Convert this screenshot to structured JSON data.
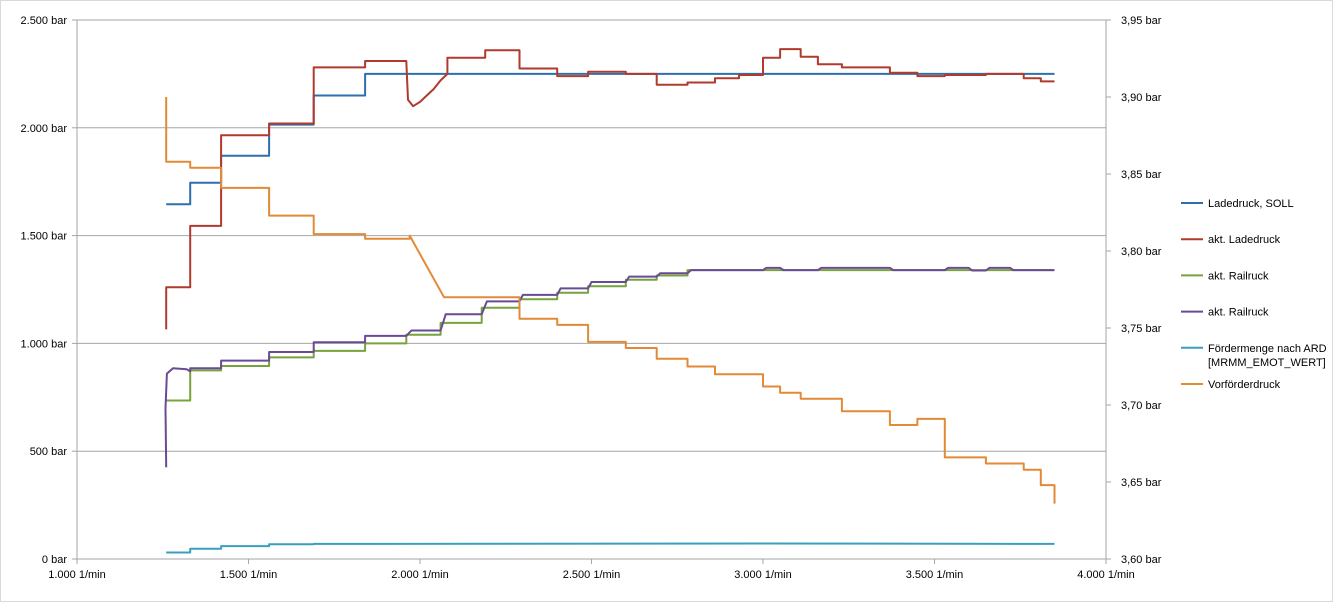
{
  "chart_data": {
    "type": "line",
    "title": "",
    "xlabel": "",
    "ylabel": "",
    "xlim": [
      1000,
      4000
    ],
    "ylim": [
      0,
      2500
    ],
    "y2lim": [
      3.6,
      3.95
    ],
    "x_ticks": [
      "1.000 1/min",
      "1.500 1/min",
      "2.000 1/min",
      "2.500 1/min",
      "3.000 1/min",
      "3.500 1/min",
      "4.000 1/min"
    ],
    "y_ticks": [
      "0 bar",
      "500 bar",
      "1.000 bar",
      "1.500 bar",
      "2.000 bar",
      "2.500 bar"
    ],
    "y2_ticks": [
      "3,60 bar",
      "3,65 bar",
      "3,70 bar",
      "3,75 bar",
      "3,80 bar",
      "3,85 bar",
      "3,90 bar",
      "3,95 bar"
    ],
    "grid": "horizontal",
    "legend_position": "right",
    "series": [
      {
        "name": "Ladedruck, SOLL",
        "color": "#2e6fad",
        "axis": "left",
        "x": [
          1260,
          1330,
          1330,
          1420,
          1420,
          1560,
          1560,
          1690,
          1690,
          1840,
          1840,
          3850
        ],
        "y": [
          1645,
          1645,
          1745,
          1745,
          1870,
          1870,
          2015,
          2015,
          2150,
          2150,
          2250,
          2250
        ]
      },
      {
        "name": "akt. Ladedruck",
        "color": "#b03a2e",
        "axis": "left",
        "x": [
          1260,
          1260,
          1330,
          1330,
          1420,
          1420,
          1560,
          1560,
          1690,
          1690,
          1840,
          1840,
          1960,
          1965,
          1980,
          2000,
          2040,
          2060,
          2080,
          2080,
          2190,
          2190,
          2290,
          2290,
          2400,
          2400,
          2490,
          2490,
          2600,
          2600,
          2690,
          2690,
          2780,
          2780,
          2860,
          2860,
          2930,
          2930,
          3000,
          3000,
          3050,
          3050,
          3110,
          3110,
          3160,
          3160,
          3230,
          3230,
          3370,
          3370,
          3450,
          3450,
          3530,
          3530,
          3650,
          3650,
          3760,
          3760,
          3810,
          3810,
          3850
        ],
        "y": [
          1065,
          1260,
          1260,
          1545,
          1545,
          1965,
          1965,
          2020,
          2020,
          2280,
          2280,
          2310,
          2310,
          2130,
          2100,
          2120,
          2180,
          2220,
          2250,
          2325,
          2325,
          2360,
          2360,
          2275,
          2275,
          2240,
          2240,
          2260,
          2260,
          2250,
          2250,
          2200,
          2200,
          2210,
          2210,
          2230,
          2230,
          2245,
          2245,
          2325,
          2325,
          2365,
          2365,
          2330,
          2330,
          2295,
          2295,
          2280,
          2280,
          2255,
          2255,
          2240,
          2240,
          2245,
          2245,
          2250,
          2250,
          2230,
          2230,
          2215,
          2215
        ]
      },
      {
        "name": "akt. Railruck",
        "color": "#77a33d",
        "axis": "left",
        "x": [
          1260,
          1330,
          1330,
          1420,
          1420,
          1560,
          1560,
          1690,
          1690,
          1840,
          1840,
          1960,
          1960,
          2060,
          2060,
          2180,
          2180,
          2290,
          2290,
          2400,
          2400,
          2490,
          2490,
          2600,
          2600,
          2690,
          2690,
          2780,
          2780,
          3850
        ],
        "y": [
          735,
          735,
          875,
          875,
          895,
          895,
          935,
          935,
          965,
          965,
          1000,
          1000,
          1040,
          1040,
          1095,
          1095,
          1165,
          1165,
          1205,
          1205,
          1235,
          1235,
          1265,
          1265,
          1295,
          1295,
          1315,
          1315,
          1340,
          1340
        ]
      },
      {
        "name": "akt. Railruck",
        "color": "#6a4a96",
        "axis": "left",
        "x": [
          1260,
          1258,
          1262,
          1280,
          1320,
          1330,
          1330,
          1420,
          1420,
          1560,
          1560,
          1690,
          1690,
          1840,
          1840,
          1960,
          1975,
          2060,
          2075,
          2180,
          2195,
          2290,
          2300,
          2400,
          2410,
          2490,
          2500,
          2600,
          2610,
          2690,
          2700,
          2780,
          2790,
          3000,
          3010,
          3050,
          3060,
          3160,
          3170,
          3370,
          3380,
          3530,
          3540,
          3600,
          3610,
          3650,
          3660,
          3720,
          3730,
          3850
        ],
        "y": [
          425,
          700,
          860,
          885,
          880,
          870,
          885,
          885,
          920,
          920,
          960,
          960,
          1005,
          1005,
          1035,
          1035,
          1060,
          1060,
          1135,
          1135,
          1195,
          1195,
          1225,
          1225,
          1255,
          1255,
          1285,
          1285,
          1310,
          1310,
          1325,
          1325,
          1340,
          1340,
          1350,
          1350,
          1340,
          1340,
          1350,
          1350,
          1340,
          1340,
          1350,
          1350,
          1338,
          1338,
          1350,
          1350,
          1340,
          1340
        ]
      },
      {
        "name": "Fördermenge nach ARD [MRMM_EMOT_WERT]",
        "color": "#3a9fbf",
        "axis": "left",
        "x": [
          1260,
          1330,
          1330,
          1420,
          1420,
          1560,
          1560,
          1690,
          1690,
          3000,
          3850
        ],
        "y": [
          30,
          30,
          48,
          48,
          60,
          60,
          68,
          68,
          70,
          72,
          70
        ]
      },
      {
        "name": "Vorförderdruck",
        "color": "#e28a35",
        "axis": "right",
        "x": [
          1260,
          1260,
          1330,
          1330,
          1420,
          1420,
          1560,
          1560,
          1690,
          1690,
          1840,
          1840,
          1970,
          1970,
          2070,
          2070,
          2290,
          2290,
          2400,
          2400,
          2490,
          2490,
          2600,
          2600,
          2690,
          2690,
          2780,
          2780,
          2860,
          2860,
          3000,
          3000,
          3050,
          3050,
          3110,
          3110,
          3230,
          3230,
          3370,
          3370,
          3450,
          3450,
          3530,
          3530,
          3650,
          3650,
          3760,
          3760,
          3810,
          3810,
          3850,
          3850
        ],
        "y": [
          3.9,
          3.858,
          3.858,
          3.854,
          3.854,
          3.841,
          3.841,
          3.823,
          3.823,
          3.811,
          3.811,
          3.808,
          3.808,
          3.81,
          3.77,
          3.77,
          3.77,
          3.756,
          3.756,
          3.752,
          3.752,
          3.741,
          3.741,
          3.737,
          3.737,
          3.73,
          3.73,
          3.725,
          3.725,
          3.72,
          3.72,
          3.712,
          3.712,
          3.708,
          3.708,
          3.704,
          3.704,
          3.696,
          3.696,
          3.687,
          3.687,
          3.691,
          3.691,
          3.666,
          3.666,
          3.662,
          3.662,
          3.658,
          3.658,
          3.648,
          3.648,
          3.636
        ]
      }
    ]
  }
}
